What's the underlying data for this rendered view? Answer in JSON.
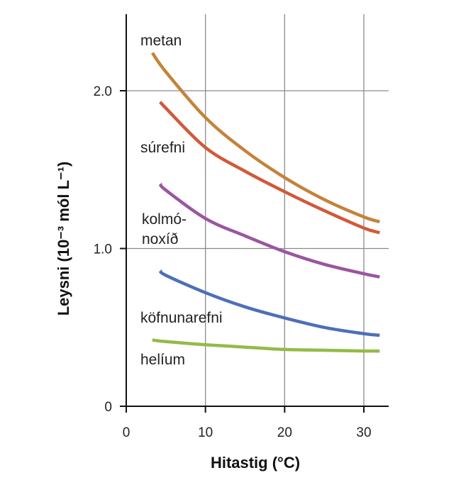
{
  "chart_data": {
    "type": "line",
    "title": "",
    "xlabel": "Hitastig (°C)",
    "ylabel": "Leysni (10⁻³ mól L⁻¹)",
    "xlim": [
      0,
      33
    ],
    "ylim": [
      0,
      2.45
    ],
    "xticks": [
      0,
      10,
      20,
      30
    ],
    "xtick_labels": [
      "0",
      "10",
      "20",
      "30"
    ],
    "yticks": [
      0,
      1.0,
      2.0
    ],
    "ytick_labels": [
      "0",
      "1.0",
      "2.0"
    ],
    "grid": true,
    "legend": "none",
    "series": [
      {
        "name": "metan",
        "label_lines": [
          "metan"
        ],
        "color": "#c4833a",
        "x": [
          3.3,
          5,
          10,
          15,
          20,
          25,
          30,
          32
        ],
        "y": [
          2.24,
          2.12,
          1.83,
          1.62,
          1.45,
          1.31,
          1.2,
          1.17
        ]
      },
      {
        "name": "súrefni",
        "label_lines": [
          "súrefni"
        ],
        "color": "#d05a3a",
        "x": [
          4.3,
          5,
          10,
          15,
          20,
          25,
          30,
          32
        ],
        "y": [
          1.93,
          1.89,
          1.64,
          1.49,
          1.36,
          1.24,
          1.13,
          1.1
        ]
      },
      {
        "name": "kolmó-noxíð",
        "label_lines": [
          "kolmó-",
          "noxíð"
        ],
        "color": "#9a55a0",
        "x": [
          4.3,
          5,
          10,
          15,
          20,
          25,
          30,
          32
        ],
        "y": [
          1.41,
          1.37,
          1.19,
          1.08,
          0.98,
          0.9,
          0.84,
          0.82
        ]
      },
      {
        "name": "köfnunarefni",
        "label_lines": [
          "köfnunarefni"
        ],
        "color": "#4e6fb8",
        "x": [
          4.3,
          5,
          10,
          15,
          20,
          25,
          30,
          32
        ],
        "y": [
          0.86,
          0.83,
          0.72,
          0.63,
          0.56,
          0.5,
          0.46,
          0.45
        ]
      },
      {
        "name": "helíum",
        "label_lines": [
          "helíum"
        ],
        "color": "#93bb47",
        "x": [
          3.3,
          5,
          10,
          15,
          20,
          25,
          30,
          32
        ],
        "y": [
          0.42,
          0.41,
          0.39,
          0.375,
          0.36,
          0.355,
          0.35,
          0.35
        ]
      }
    ]
  }
}
